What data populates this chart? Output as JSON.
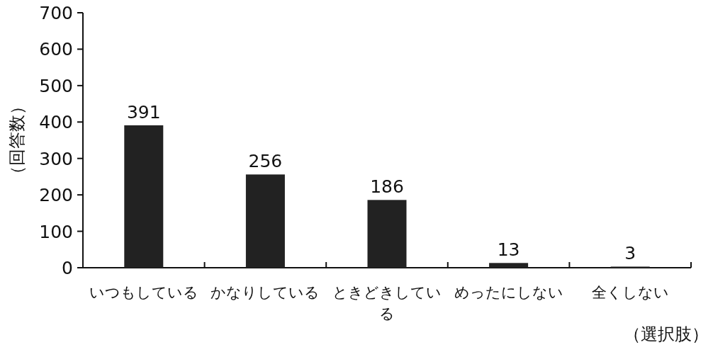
{
  "chart_data": {
    "type": "bar",
    "categories": [
      "いつもしている",
      "かなりしている",
      "ときどきしている",
      "めったにしない",
      "全くしない"
    ],
    "values": [
      391,
      256,
      186,
      13,
      3
    ],
    "color": "#222222",
    "ylim": [
      0,
      700
    ],
    "yticks": [
      0,
      100,
      200,
      300,
      400,
      500,
      600,
      700
    ],
    "ylabel": "（回答数）",
    "xlabel": "（選択肢）",
    "data_labels": true,
    "grid": false
  }
}
